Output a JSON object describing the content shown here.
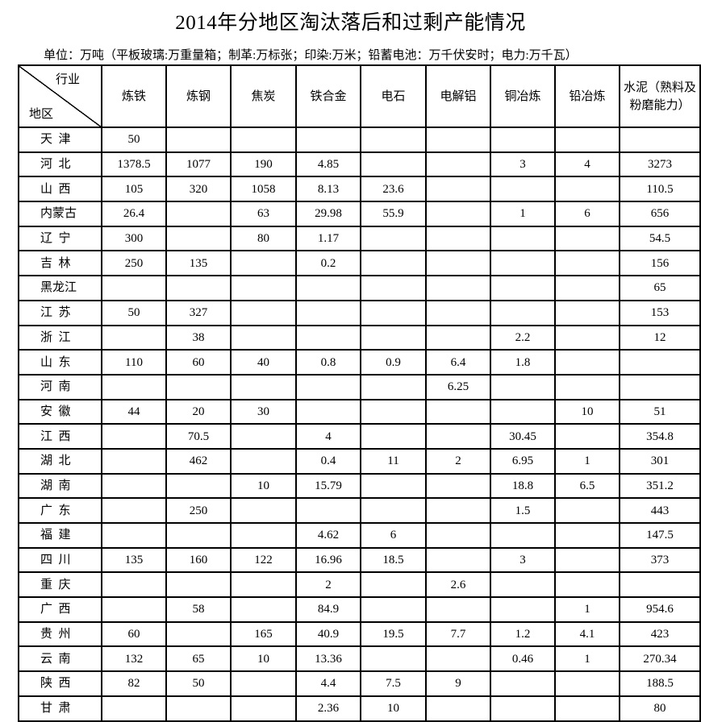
{
  "title": "2014年分地区淘汰落后和过剩产能情况",
  "unit_note": "单位：万吨（平板玻璃:万重量箱；制革:万标张；印染:万米；铅蓄电池：万千伏安时；电力:万千瓦）",
  "header": {
    "corner_industry": "行业",
    "corner_region": "地区",
    "columns": [
      "炼铁",
      "炼钢",
      "焦炭",
      "铁合金",
      "电石",
      "电解铝",
      "铜冶炼",
      "铅冶炼",
      "水泥（熟料及粉磨能力）"
    ]
  },
  "rows": [
    {
      "region": "天  津",
      "values": [
        "50",
        "",
        "",
        "",
        "",
        "",
        "",
        "",
        ""
      ]
    },
    {
      "region": "河  北",
      "values": [
        "1378.5",
        "1077",
        "190",
        "4.85",
        "",
        "",
        "3",
        "4",
        "3273"
      ]
    },
    {
      "region": "山  西",
      "values": [
        "105",
        "320",
        "1058",
        "8.13",
        "23.6",
        "",
        "",
        "",
        "110.5"
      ]
    },
    {
      "region": "内蒙古",
      "values": [
        "26.4",
        "",
        "63",
        "29.98",
        "55.9",
        "",
        "1",
        "6",
        "656"
      ]
    },
    {
      "region": "辽  宁",
      "values": [
        "300",
        "",
        "80",
        "1.17",
        "",
        "",
        "",
        "",
        "54.5"
      ]
    },
    {
      "region": "吉  林",
      "values": [
        "250",
        "135",
        "",
        "0.2",
        "",
        "",
        "",
        "",
        "156"
      ]
    },
    {
      "region": "黑龙江",
      "values": [
        "",
        "",
        "",
        "",
        "",
        "",
        "",
        "",
        "65"
      ]
    },
    {
      "region": "江  苏",
      "values": [
        "50",
        "327",
        "",
        "",
        "",
        "",
        "",
        "",
        "153"
      ]
    },
    {
      "region": "浙  江",
      "values": [
        "",
        "38",
        "",
        "",
        "",
        "",
        "2.2",
        "",
        "12"
      ]
    },
    {
      "region": "山  东",
      "values": [
        "110",
        "60",
        "40",
        "0.8",
        "0.9",
        "6.4",
        "1.8",
        "",
        ""
      ]
    },
    {
      "region": "河  南",
      "values": [
        "",
        "",
        "",
        "",
        "",
        "6.25",
        "",
        "",
        ""
      ]
    },
    {
      "region": "安  徽",
      "values": [
        "44",
        "20",
        "30",
        "",
        "",
        "",
        "",
        "10",
        "51"
      ]
    },
    {
      "region": "江  西",
      "values": [
        "",
        "70.5",
        "",
        "4",
        "",
        "",
        "30.45",
        "",
        "354.8"
      ]
    },
    {
      "region": "湖  北",
      "values": [
        "",
        "462",
        "",
        "0.4",
        "11",
        "2",
        "6.95",
        "1",
        "301"
      ]
    },
    {
      "region": "湖  南",
      "values": [
        "",
        "",
        "10",
        "15.79",
        "",
        "",
        "18.8",
        "6.5",
        "351.2"
      ]
    },
    {
      "region": "广  东",
      "values": [
        "",
        "250",
        "",
        "",
        "",
        "",
        "1.5",
        "",
        "443"
      ]
    },
    {
      "region": "福  建",
      "values": [
        "",
        "",
        "",
        "4.62",
        "6",
        "",
        "",
        "",
        "147.5"
      ]
    },
    {
      "region": "四  川",
      "values": [
        "135",
        "160",
        "122",
        "16.96",
        "18.5",
        "",
        "3",
        "",
        "373"
      ]
    },
    {
      "region": "重  庆",
      "values": [
        "",
        "",
        "",
        "2",
        "",
        "2.6",
        "",
        "",
        ""
      ]
    },
    {
      "region": "广  西",
      "values": [
        "",
        "58",
        "",
        "84.9",
        "",
        "",
        "",
        "1",
        "954.6"
      ]
    },
    {
      "region": "贵  州",
      "values": [
        "60",
        "",
        "165",
        "40.9",
        "19.5",
        "7.7",
        "1.2",
        "4.1",
        "423"
      ]
    },
    {
      "region": "云  南",
      "values": [
        "132",
        "65",
        "10",
        "13.36",
        "",
        "",
        "0.46",
        "1",
        "270.34"
      ]
    },
    {
      "region": "陕  西",
      "values": [
        "82",
        "50",
        "",
        "4.4",
        "7.5",
        "9",
        "",
        "",
        "188.5"
      ]
    },
    {
      "region": "甘  肃",
      "values": [
        "",
        "",
        "",
        "2.36",
        "10",
        "",
        "",
        "",
        "80"
      ]
    }
  ]
}
